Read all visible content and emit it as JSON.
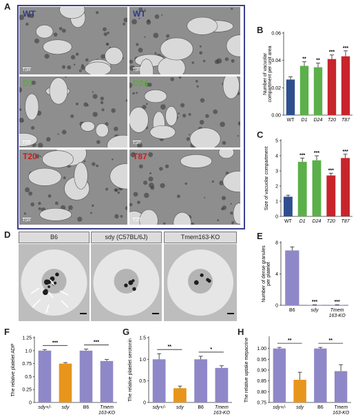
{
  "panels": {
    "a": {
      "label": "A"
    },
    "b": {
      "label": "B"
    },
    "c": {
      "label": "C"
    },
    "d": {
      "label": "D"
    },
    "e": {
      "label": "E"
    },
    "f": {
      "label": "F"
    },
    "g": {
      "label": "G"
    },
    "h": {
      "label": "H"
    }
  },
  "micrographs": [
    {
      "name": "WT",
      "color": "#2b3a8c",
      "scale": "1 μm"
    },
    {
      "name": "WT",
      "color": "#2b3a8c",
      "scale": "1 μm"
    },
    {
      "name": "D1",
      "color": "#5aaa3a",
      "scale": "1 μm"
    },
    {
      "name": "D24",
      "color": "#5aaa3a",
      "scale": "1 μm"
    },
    {
      "name": "T20",
      "color": "#c81e1e",
      "scale": "1 μm"
    },
    {
      "name": "T87",
      "color": "#c81e1e",
      "scale": "1 μm"
    }
  ],
  "platelet_headers": [
    "B6",
    "sdy (C57BL/6J)",
    "Tmem163-KO"
  ],
  "colors": {
    "blue": "#2e4f8f",
    "green": "#5bb04a",
    "red": "#c8242b",
    "purple": "#8f88c8",
    "orange": "#e8951c"
  },
  "chart_data": [
    {
      "panel": "B",
      "type": "bar",
      "categories": [
        "WT",
        "D1",
        "D24",
        "T20",
        "T87"
      ],
      "values": [
        0.026,
        0.036,
        0.035,
        0.041,
        0.043
      ],
      "errors": [
        0.002,
        0.003,
        0.003,
        0.003,
        0.004
      ],
      "significance": [
        "",
        "**",
        "**",
        "***",
        "***"
      ],
      "bar_colors": [
        "#2e4f8f",
        "#5bb04a",
        "#5bb04a",
        "#c8242b",
        "#c8242b"
      ],
      "ylabel": "Number of vacuolar compartment per unit area",
      "ylim": [
        0,
        0.06
      ],
      "yticks": [
        "0.00",
        "0.02",
        "0.04",
        "0.06"
      ]
    },
    {
      "panel": "C",
      "type": "bar",
      "categories": [
        "WT",
        "D1",
        "D24",
        "T20",
        "T87"
      ],
      "values": [
        1.3,
        3.6,
        3.7,
        2.7,
        3.85
      ],
      "errors": [
        0.1,
        0.25,
        0.3,
        0.15,
        0.25
      ],
      "significance": [
        "",
        "***",
        "***",
        "***",
        "***"
      ],
      "bar_colors": [
        "#2e4f8f",
        "#5bb04a",
        "#5bb04a",
        "#c8242b",
        "#c8242b"
      ],
      "ylabel": "Size of vacuolar compartment",
      "ylim": [
        0,
        5
      ],
      "yticks": [
        "0",
        "1",
        "2",
        "3",
        "4",
        "5"
      ]
    },
    {
      "panel": "E",
      "type": "bar",
      "categories": [
        "B6",
        "sdy",
        "Tmem 163-KO"
      ],
      "values": [
        7.0,
        0.05,
        0.05
      ],
      "errors": [
        0.45,
        0.02,
        0.02
      ],
      "significance": [
        "",
        "***",
        "***"
      ],
      "bar_colors": [
        "#8f88c8",
        "#8f88c8",
        "#8f88c8"
      ],
      "ylabel": "Number of dense granules per platelet",
      "ylim": [
        0,
        8
      ],
      "yticks": [
        "0",
        "4",
        "8"
      ]
    },
    {
      "panel": "F",
      "type": "bar",
      "categories": [
        "sdy+/-",
        "sdy",
        "B6",
        "Tmem 163-KO"
      ],
      "values": [
        1.0,
        0.75,
        1.0,
        0.8
      ],
      "errors": [
        0.02,
        0.02,
        0.03,
        0.03
      ],
      "significance_brackets": [
        {
          "from": 0,
          "to": 1,
          "label": "***"
        },
        {
          "from": 2,
          "to": 3,
          "label": "***"
        }
      ],
      "bar_colors": [
        "#8f88c8",
        "#e8951c",
        "#8f88c8",
        "#8f88c8"
      ],
      "ylabel": "The relative platelet ADP",
      "ylim": [
        0,
        1.25
      ],
      "yticks": [
        "0",
        "0.25",
        "0.5",
        "0.75",
        "1.0",
        "1.25"
      ]
    },
    {
      "panel": "G",
      "type": "bar",
      "categories": [
        "sdy+/-",
        "sdy",
        "B6",
        "Tmem 163-KO"
      ],
      "values": [
        1.0,
        0.33,
        1.0,
        0.8
      ],
      "errors": [
        0.13,
        0.05,
        0.07,
        0.05
      ],
      "significance_brackets": [
        {
          "from": 0,
          "to": 1,
          "label": "**"
        },
        {
          "from": 2,
          "to": 3,
          "label": "*"
        }
      ],
      "bar_colors": [
        "#8f88c8",
        "#e8951c",
        "#8f88c8",
        "#8f88c8"
      ],
      "ylabel": "The relative platelet serotonin",
      "ylim": [
        0,
        1.5
      ],
      "yticks": [
        "0",
        "0.5",
        "1.0",
        "1.5"
      ]
    },
    {
      "panel": "H",
      "type": "bar",
      "categories": [
        "sdy+/-",
        "sdy",
        "B6",
        "Tmem 163-KO"
      ],
      "values": [
        1.0,
        0.855,
        1.0,
        0.895
      ],
      "errors": [
        0.005,
        0.035,
        0.005,
        0.03
      ],
      "significance_brackets": [
        {
          "from": 0,
          "to": 1,
          "label": "**"
        },
        {
          "from": 2,
          "to": 3,
          "label": "**"
        }
      ],
      "bar_colors": [
        "#8f88c8",
        "#e8951c",
        "#8f88c8",
        "#8f88c8"
      ],
      "ylabel": "The relative uptake mepacrine",
      "ylim": [
        0.75,
        1.05
      ],
      "yticks": [
        "0.75",
        "0.80",
        "0.85",
        "0.90",
        "0.95",
        "1.00"
      ]
    }
  ]
}
